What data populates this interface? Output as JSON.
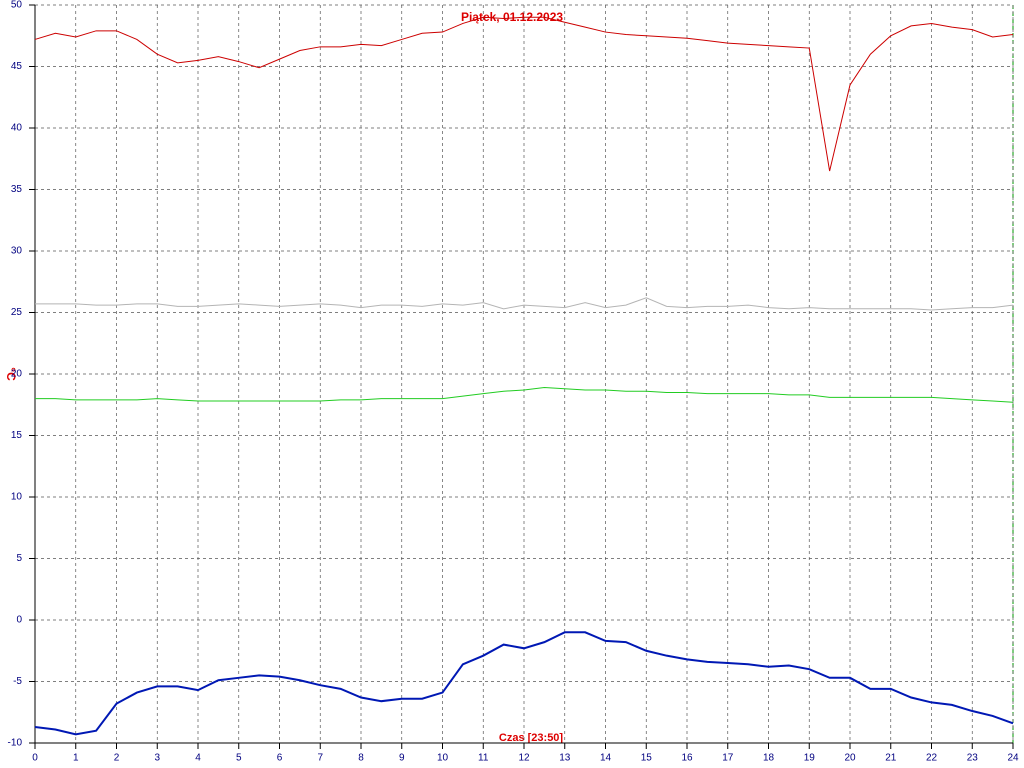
{
  "chart_data": {
    "type": "line",
    "title": "Piątek, 01.12.2023",
    "y_label": "°C",
    "x_label": "Czas [23:50]",
    "x": [
      0,
      0.5,
      1,
      1.5,
      2,
      2.5,
      3,
      3.5,
      4,
      4.5,
      5,
      5.5,
      6,
      6.5,
      7,
      7.5,
      8,
      8.5,
      9,
      9.5,
      10,
      10.5,
      11,
      11.5,
      12,
      12.5,
      13,
      13.5,
      14,
      14.5,
      15,
      15.5,
      16,
      16.5,
      17,
      17.5,
      18,
      18.5,
      19,
      19.5,
      20,
      20.5,
      21,
      21.5,
      22,
      22.5,
      23,
      23.5,
      24
    ],
    "series": [
      {
        "color": "#cc0000",
        "width": 1,
        "values": [
          47.2,
          47.7,
          47.4,
          47.9,
          47.9,
          47.2,
          46.0,
          45.3,
          45.5,
          45.8,
          45.4,
          44.9,
          45.6,
          46.3,
          46.6,
          46.6,
          46.8,
          46.7,
          47.2,
          47.7,
          47.8,
          48.5,
          49.0,
          48.9,
          49.0,
          49.0,
          48.6,
          48.2,
          47.8,
          47.6,
          47.5,
          47.4,
          47.3,
          47.1,
          46.9,
          46.8,
          46.7,
          46.6,
          46.5,
          36.5,
          43.5,
          46.0,
          47.5,
          48.3,
          48.5,
          48.2,
          48.0,
          47.4,
          47.6
        ]
      },
      {
        "color": "#b4b4b4",
        "width": 1,
        "values": [
          25.7,
          25.7,
          25.7,
          25.6,
          25.6,
          25.7,
          25.7,
          25.5,
          25.5,
          25.6,
          25.7,
          25.6,
          25.5,
          25.6,
          25.7,
          25.6,
          25.4,
          25.6,
          25.6,
          25.5,
          25.7,
          25.6,
          25.8,
          25.3,
          25.6,
          25.5,
          25.4,
          25.8,
          25.4,
          25.6,
          26.2,
          25.5,
          25.4,
          25.5,
          25.5,
          25.6,
          25.4,
          25.3,
          25.4,
          25.3,
          25.3,
          25.3,
          25.3,
          25.3,
          25.2,
          25.3,
          25.4,
          25.4,
          25.6
        ]
      },
      {
        "color": "#22cc22",
        "width": 1,
        "values": [
          18.0,
          18.0,
          17.9,
          17.9,
          17.9,
          17.9,
          18.0,
          17.9,
          17.8,
          17.8,
          17.8,
          17.8,
          17.8,
          17.8,
          17.8,
          17.9,
          17.9,
          18.0,
          18.0,
          18.0,
          18.0,
          18.2,
          18.4,
          18.6,
          18.7,
          18.9,
          18.8,
          18.7,
          18.7,
          18.6,
          18.6,
          18.5,
          18.5,
          18.4,
          18.4,
          18.4,
          18.4,
          18.3,
          18.3,
          18.1,
          18.1,
          18.1,
          18.1,
          18.1,
          18.1,
          18.0,
          17.9,
          17.8,
          17.7
        ]
      },
      {
        "color": "#0018b4",
        "width": 2,
        "values": [
          -8.7,
          -8.9,
          -9.3,
          -9.0,
          -6.8,
          -5.9,
          -5.4,
          -5.4,
          -5.7,
          -4.9,
          -4.7,
          -4.5,
          -4.6,
          -4.9,
          -5.3,
          -5.6,
          -6.3,
          -6.6,
          -6.4,
          -6.4,
          -5.9,
          -3.6,
          -2.9,
          -2.0,
          -2.3,
          -1.8,
          -1.0,
          -1.0,
          -1.7,
          -1.8,
          -2.5,
          -2.9,
          -3.2,
          -3.4,
          -3.5,
          -3.6,
          -3.8,
          -3.7,
          -4.0,
          -4.7,
          -4.7,
          -5.6,
          -5.6,
          -6.3,
          -6.7,
          -6.9,
          -7.4,
          -7.8,
          -8.4
        ]
      }
    ],
    "xlim": [
      0,
      24
    ],
    "ylim": [
      -10,
      50
    ],
    "xticks": [
      0,
      1,
      2,
      3,
      4,
      5,
      6,
      7,
      8,
      9,
      10,
      11,
      12,
      13,
      14,
      15,
      16,
      17,
      18,
      19,
      20,
      21,
      22,
      23,
      24
    ],
    "yticks": [
      -10,
      -5,
      0,
      5,
      10,
      15,
      20,
      25,
      30,
      35,
      40,
      45,
      50
    ],
    "grid": true
  }
}
